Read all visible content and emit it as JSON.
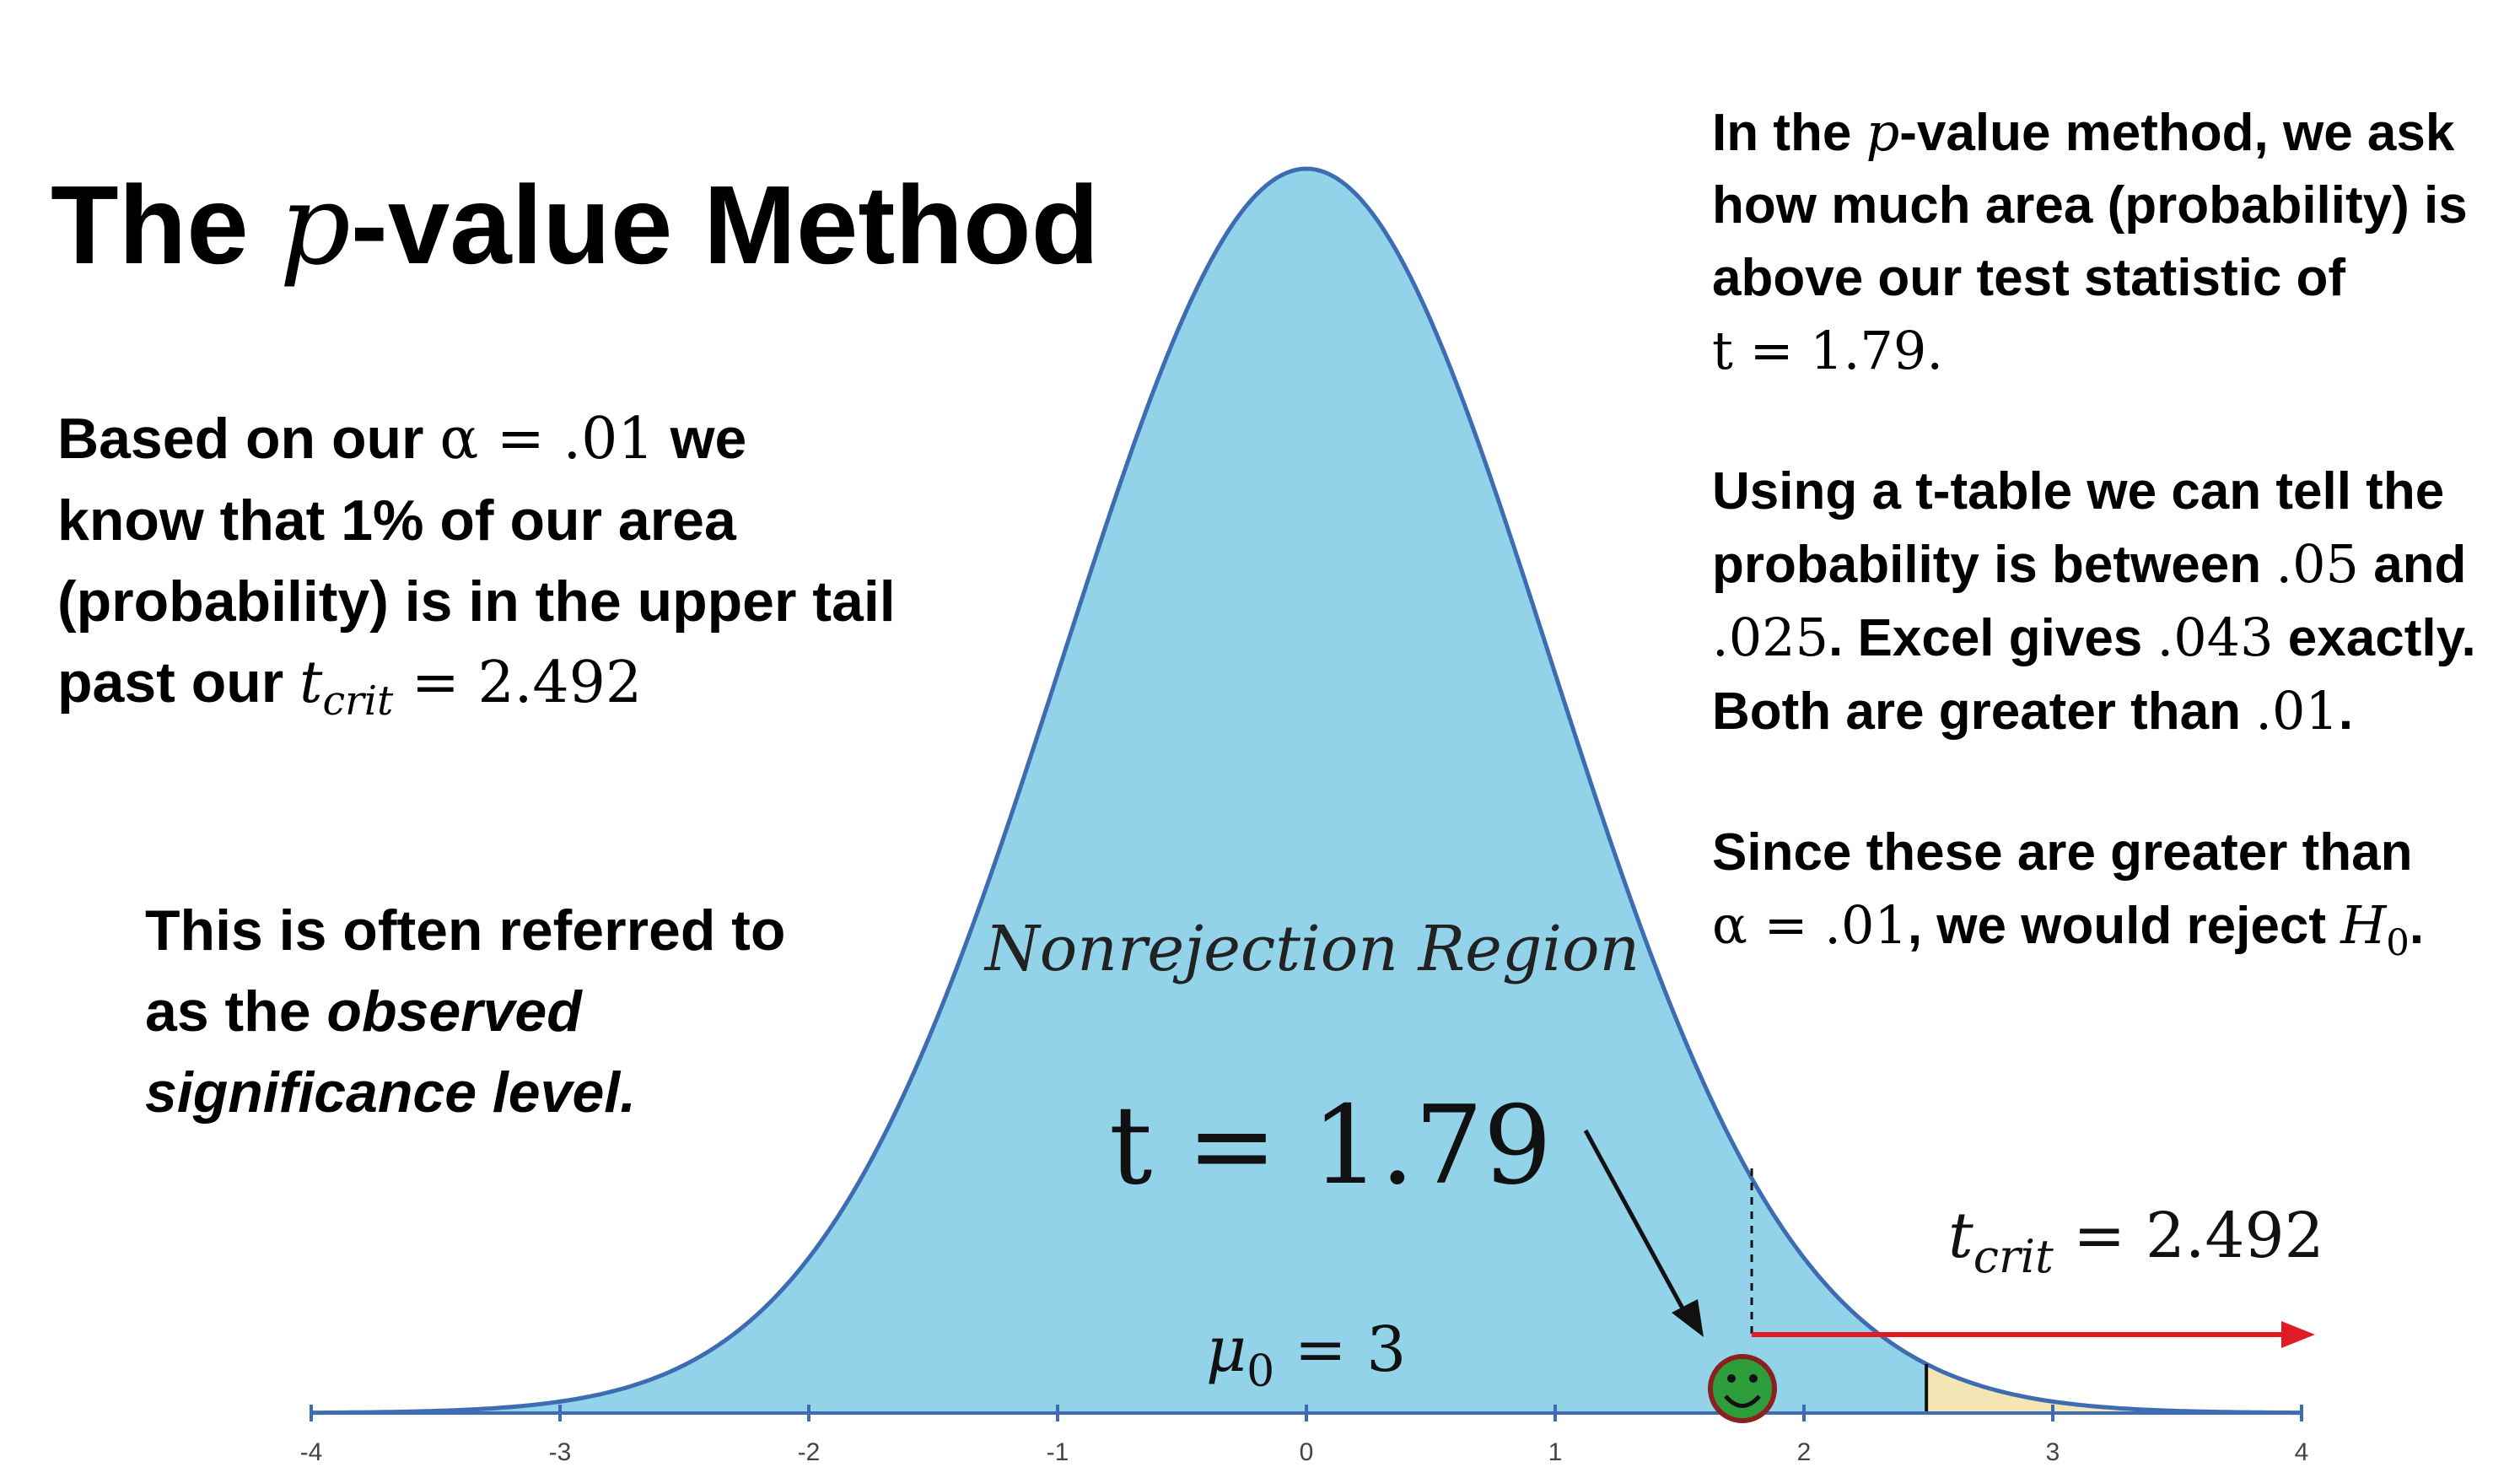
{
  "title": {
    "prefix": "The ",
    "p": "p",
    "suffix": "-value Method"
  },
  "left_para1": {
    "line1_prefix": "Based on our ",
    "alpha_expr": "α = .01",
    "line1_suffix": " we",
    "line2": "know that 1% of our area",
    "line3": "(probability) is in the upper tail",
    "line4_prefix": "past our ",
    "tcrit_t": "t",
    "tcrit_sub": "crit",
    "tcrit_value": " = 2.492"
  },
  "left_para2": {
    "line1": "This is often referred to",
    "line2_prefix": "as the ",
    "line2_italic": "observed",
    "line3_italic": "significance level."
  },
  "right_para1": {
    "line1_prefix": "In the ",
    "p": "p",
    "line1_suffix": "-value method, we ask",
    "line2": "how much area (probability) is",
    "line3_prefix": "above our ",
    "line3_bold": "test statistic",
    "line3_suffix": " of",
    "line4": "t = 1.79."
  },
  "right_para2": {
    "line1": "Using a t-table we can tell the",
    "line2_prefix": "probability is between ",
    "line2_v1": ".05",
    "line2_suffix": " and",
    "line3_v1": ".025",
    "line3_mid": ". Excel gives ",
    "line3_v2": ".043",
    "line3_suffix": " exactly.",
    "line4_prefix": "Both are greater than ",
    "line4_v": ".01",
    "line4_suffix": "."
  },
  "right_para3": {
    "line1": "Since these are greater than",
    "line2_alpha": "α = .01",
    "line2_mid": ", we would reject ",
    "line2_H": "H",
    "line2_sub": "0",
    "line2_suffix": "."
  },
  "diagram": {
    "region_label": "Nonrejection Region",
    "test_stat_label": "t = 1.79",
    "mu_label_mu": "μ",
    "mu_label_sub": "0",
    "mu_label_value": " = 3",
    "tcrit_label_t": "t",
    "tcrit_label_sub": "crit",
    "tcrit_label_value": " = 2.492",
    "fill_color": "#93d3ea",
    "tail_color": "#f3e6b4",
    "curve_color": "#3d6cb3",
    "arrow_color": "#e01b24",
    "smiley_color": "#2e9e3c"
  },
  "chart_data": {
    "type": "area",
    "distribution": "t-distribution (bell curve)",
    "xlim": [
      -4,
      4
    ],
    "ticks": [
      -4,
      -3,
      -2,
      -1,
      0,
      1,
      2,
      3,
      4
    ],
    "test_statistic": 1.79,
    "critical_value": 2.492,
    "rejection_region": "upper tail beyond 2.492"
  }
}
